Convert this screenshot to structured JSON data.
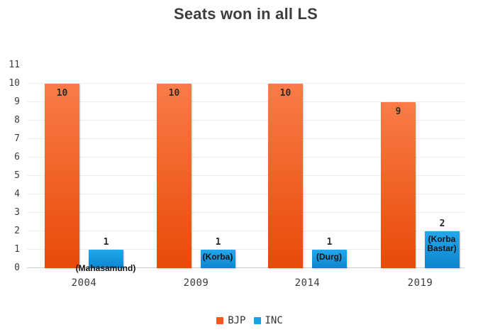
{
  "title": "Seats won in all LS",
  "legend": [
    {
      "label": "BJP",
      "color": "#f4581c"
    },
    {
      "label": "INC",
      "color": "#1b9fe5"
    }
  ],
  "colors": {
    "grid": "#ededed",
    "axis_line": "#cfcfcf",
    "tick_text": "#3c3c3c",
    "title_text": "#3d3d3d",
    "annotation_text": "#141414"
  },
  "chart_data": {
    "type": "bar",
    "title": "Seats won in all LS",
    "categories": [
      "2004",
      "2009",
      "2014",
      "2019"
    ],
    "series": [
      {
        "name": "BJP",
        "color": "#f4581c",
        "gradient": [
          "#f97c48",
          "#e84a08"
        ],
        "values": [
          10,
          10,
          10,
          9
        ]
      },
      {
        "name": "INC",
        "color": "#1b9fe5",
        "gradient": [
          "#23a7ed",
          "#0c86ce"
        ],
        "values": [
          1,
          1,
          1,
          2
        ]
      }
    ],
    "annotations": [
      "(Mahasamund)",
      "(Korba)",
      "(Durg)",
      "(Korba Bastar)"
    ],
    "xlabel": "",
    "ylabel": "",
    "ylim": [
      0,
      11
    ],
    "yticks": [
      0,
      1,
      2,
      3,
      4,
      5,
      6,
      7,
      8,
      9,
      10,
      11
    ],
    "gridline_ticks": [
      0,
      1,
      2,
      3,
      4,
      5,
      6,
      7,
      8,
      9,
      10
    ],
    "grid": true,
    "legend_position": "bottom"
  }
}
